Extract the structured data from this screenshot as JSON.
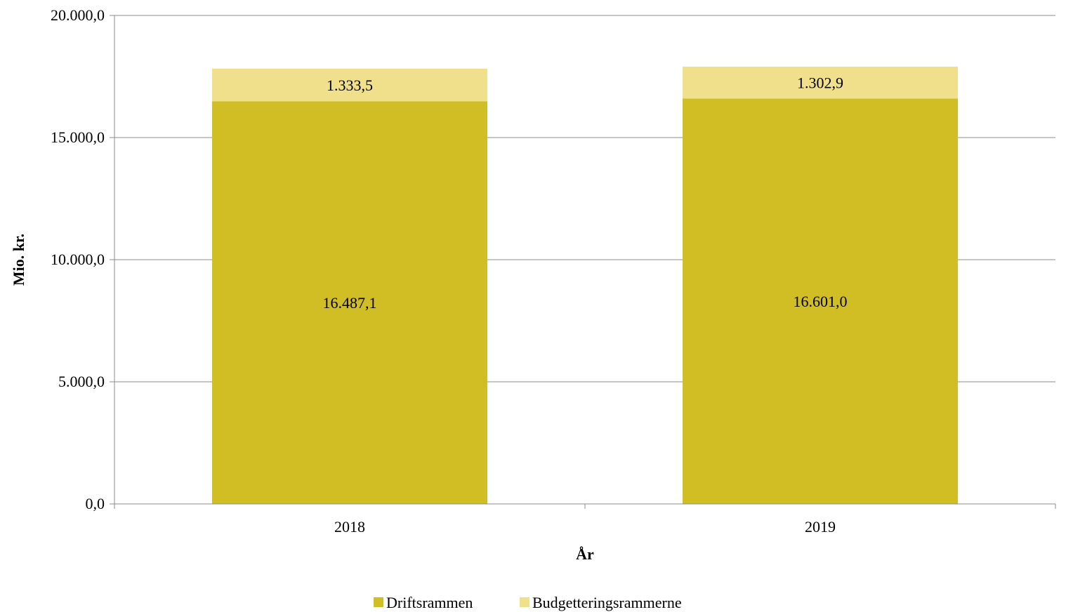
{
  "chart_data": {
    "type": "bar",
    "stacked": true,
    "categories": [
      "2018",
      "2019"
    ],
    "series": [
      {
        "name": "Driftsrammen",
        "values": [
          16487.1,
          16601.0
        ],
        "labels": [
          "16.487,1",
          "16.601,0"
        ],
        "color": "#d1bd24"
      },
      {
        "name": "Budgetteringsrammerne",
        "values": [
          1333.5,
          1302.9
        ],
        "labels": [
          "1.333,5",
          "1.302,9"
        ],
        "color": "#f0e08c"
      }
    ],
    "xlabel": "År",
    "ylabel": "Mio. kr.",
    "ylim": [
      0,
      20000
    ],
    "yticks": [
      0,
      5000,
      10000,
      15000,
      20000
    ],
    "ytick_labels": [
      "0,0",
      "5.000,0",
      "10.000,0",
      "15.000,0",
      "20.000,0"
    ],
    "grid": true,
    "legend_position": "bottom"
  }
}
